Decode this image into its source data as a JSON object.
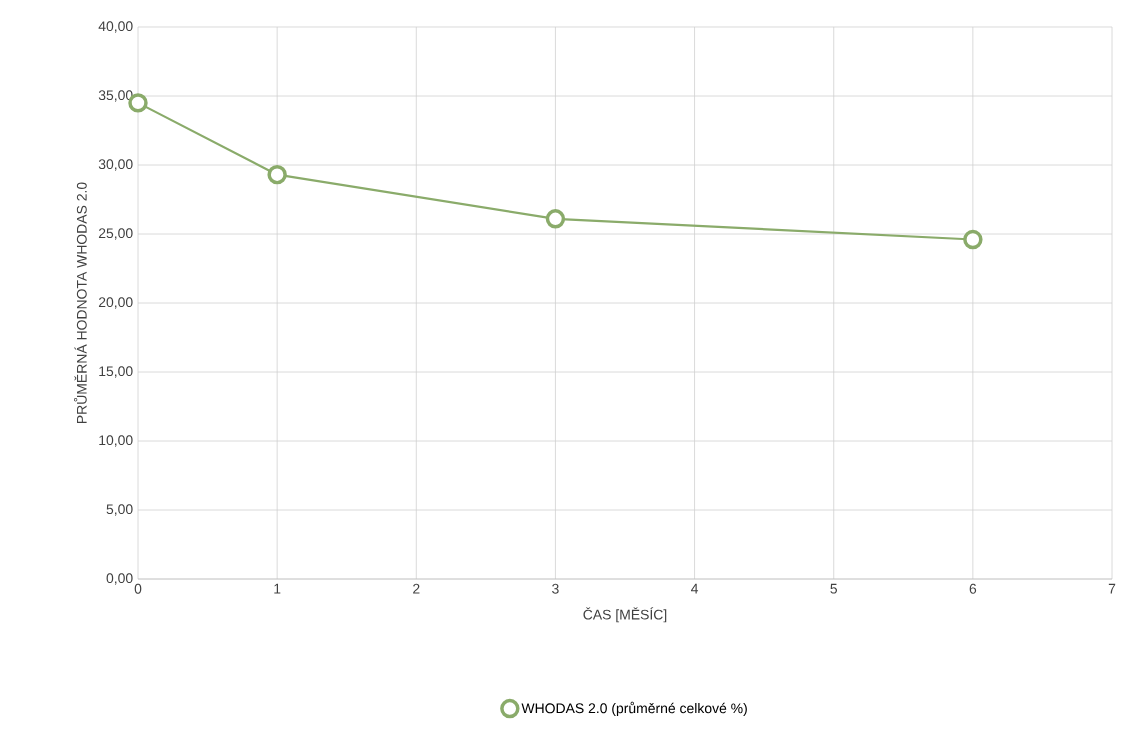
{
  "chart_data": {
    "type": "line",
    "xlabel": "ČAS [MĚSÍC]",
    "ylabel": "PRŮMĚRNÁ HODNOTA WHODAS 2.0",
    "x": [
      0,
      1,
      3,
      6
    ],
    "series": [
      {
        "name": "WHODAS 2.0 (průměrné celkové %)",
        "color": "#8aab6a",
        "values": [
          34.5,
          29.3,
          26.1,
          24.6
        ]
      }
    ],
    "xlim": [
      0,
      7
    ],
    "xticks": [
      0,
      1,
      2,
      3,
      4,
      5,
      6,
      7
    ],
    "ylim": [
      0,
      40
    ],
    "yticks": [
      {
        "value": 0,
        "label": "0,00"
      },
      {
        "value": 5,
        "label": "5,00"
      },
      {
        "value": 10,
        "label": "10,00"
      },
      {
        "value": 15,
        "label": "15,00"
      },
      {
        "value": 20,
        "label": "20,00"
      },
      {
        "value": 25,
        "label": "25,00"
      },
      {
        "value": 30,
        "label": "30,00"
      },
      {
        "value": 35,
        "label": "35,00"
      },
      {
        "value": 40,
        "label": "40,00"
      }
    ],
    "grid": true,
    "legend": "bottom",
    "marker": "circle",
    "line_style": "solid"
  }
}
